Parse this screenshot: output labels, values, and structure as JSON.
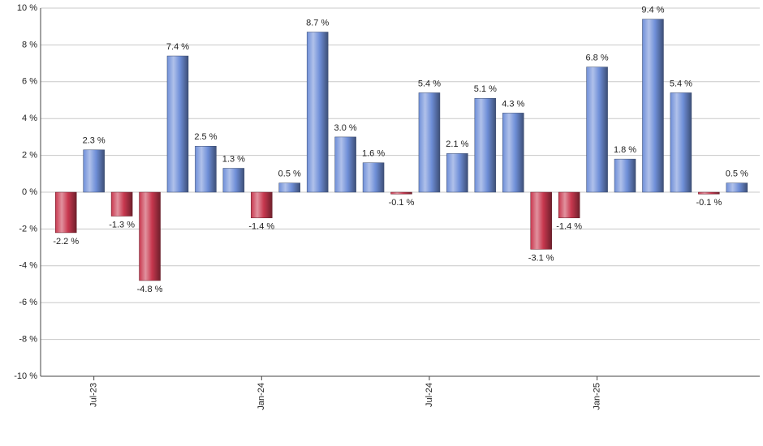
{
  "chart_data": {
    "type": "bar",
    "categories": [
      null,
      "Jul-23",
      null,
      null,
      null,
      null,
      null,
      "Jan-24",
      null,
      null,
      null,
      null,
      null,
      "Jul-24",
      null,
      null,
      null,
      null,
      null,
      "Jan-25",
      null,
      null,
      null,
      null,
      null
    ],
    "values": [
      -2.2,
      2.3,
      -1.3,
      -4.8,
      7.4,
      2.5,
      1.3,
      -1.4,
      0.5,
      8.7,
      3.0,
      1.6,
      -0.1,
      5.4,
      2.1,
      5.1,
      4.3,
      -3.1,
      -1.4,
      6.8,
      1.8,
      9.4,
      5.4,
      -0.1,
      0.5
    ],
    "value_labels": [
      "-2.2 %",
      "2.3 %",
      "-1.3 %",
      "-4.8 %",
      "7.4 %",
      "2.5 %",
      "1.3 %",
      "-1.4 %",
      "0.5 %",
      "8.7 %",
      "3.0 %",
      "1.6 %",
      "-0.1 %",
      "5.4 %",
      "2.1 %",
      "5.1 %",
      "4.3 %",
      "-3.1 %",
      "-1.4 %",
      "6.8 %",
      "1.8 %",
      "9.4 %",
      "5.4 %",
      "-0.1 %",
      "0.5 %"
    ],
    "positive_color": "#6f8fd8",
    "negative_color": "#c8384f",
    "ylim": [
      -10,
      10
    ],
    "yticks": [
      {
        "value": -10,
        "label": "-10 %"
      },
      {
        "value": -8,
        "label": "-8 %"
      },
      {
        "value": -6,
        "label": "-6 %"
      },
      {
        "value": -4,
        "label": "-4 %"
      },
      {
        "value": -2,
        "label": "-2 %"
      },
      {
        "value": 0,
        "label": "0 %"
      },
      {
        "value": 2,
        "label": "2 %"
      },
      {
        "value": 4,
        "label": "4 %"
      },
      {
        "value": 6,
        "label": "6 %"
      },
      {
        "value": 8,
        "label": "8 %"
      },
      {
        "value": 10,
        "label": "10 %"
      }
    ],
    "grid": true
  }
}
